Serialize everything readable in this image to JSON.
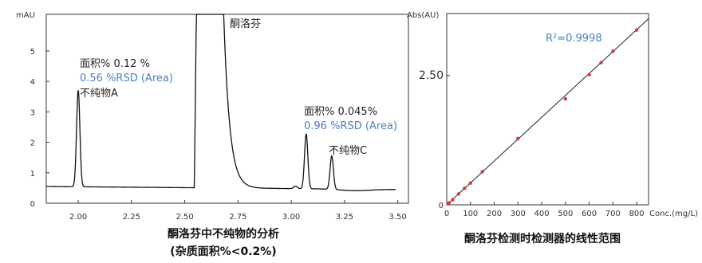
{
  "chart_data": [
    {
      "type": "line",
      "ylabel": "mAU",
      "xlim": [
        1.85,
        3.55
      ],
      "ylim": [
        0,
        6.2
      ],
      "x_ticks": [
        "2.00",
        "2.25",
        "2.50",
        "2.75",
        "3.00",
        "3.25",
        "3.50"
      ],
      "x_tick_values": [
        2.0,
        2.25,
        2.5,
        2.75,
        3.0,
        3.25,
        3.5
      ],
      "y_ticks": [
        "0",
        "1",
        "2",
        "3",
        "4",
        "5"
      ],
      "y_tick_values": [
        0,
        1,
        2,
        3,
        4,
        5
      ],
      "baseline": 0.55,
      "peaks": [
        {
          "label": "不纯物A",
          "rt": 2.0,
          "height": 3.72
        },
        {
          "label": "酮洛芬",
          "rt": 2.6,
          "height": 9.0
        },
        {
          "label": "",
          "rt": 3.07,
          "height": 2.35
        },
        {
          "label": "不纯物C",
          "rt": 3.19,
          "height": 1.65
        }
      ],
      "annotations": [
        {
          "line1": "面积% 0.12 %",
          "line2": "0.56 %RSD (Area)"
        },
        {
          "line1": "面积% 0.045%",
          "line2": "0.96 %RSD (Area)"
        }
      ],
      "labels": {
        "main_peak": "酮洛芬",
        "impurity_a": "不纯物A",
        "impurity_c": "不纯物C"
      },
      "caption_line1": "酮洛芬中不纯物的分析",
      "caption_line2": "(杂质面积%<0.2%)",
      "grid": false
    },
    {
      "type": "scatter",
      "xlabel": "Conc.(mg/L)",
      "ylabel": "Abs(AU)",
      "xlim": [
        0,
        850
      ],
      "ylim": [
        0,
        3.7
      ],
      "x_ticks": [
        "0",
        "100",
        "200",
        "300",
        "400",
        "500",
        "600",
        "700",
        "800"
      ],
      "x_tick_values": [
        0,
        100,
        200,
        300,
        400,
        500,
        600,
        700,
        800
      ],
      "y_ticks": [
        "0",
        "2.50"
      ],
      "y_tick_values": [
        0,
        2.5
      ],
      "highlight_tick_color": "#d43a3a",
      "point_color": "#d43a3a",
      "fit_color": "#222222",
      "r2_label": "R²=0.9998",
      "r2_color": "#4a7fc1",
      "points": [
        {
          "x": 5,
          "y": 0.02
        },
        {
          "x": 10,
          "y": 0.04
        },
        {
          "x": 25,
          "y": 0.1
        },
        {
          "x": 50,
          "y": 0.21
        },
        {
          "x": 75,
          "y": 0.32
        },
        {
          "x": 100,
          "y": 0.42
        },
        {
          "x": 150,
          "y": 0.64
        },
        {
          "x": 300,
          "y": 1.28
        },
        {
          "x": 500,
          "y": 2.05
        },
        {
          "x": 600,
          "y": 2.52
        },
        {
          "x": 650,
          "y": 2.75
        },
        {
          "x": 700,
          "y": 2.97
        },
        {
          "x": 800,
          "y": 3.38
        }
      ],
      "fit": {
        "x0": 0,
        "y0": 0,
        "x1": 850,
        "y1": 3.6
      },
      "caption": "酮洛芬检测时检测器的线性范围",
      "grid": false
    }
  ]
}
